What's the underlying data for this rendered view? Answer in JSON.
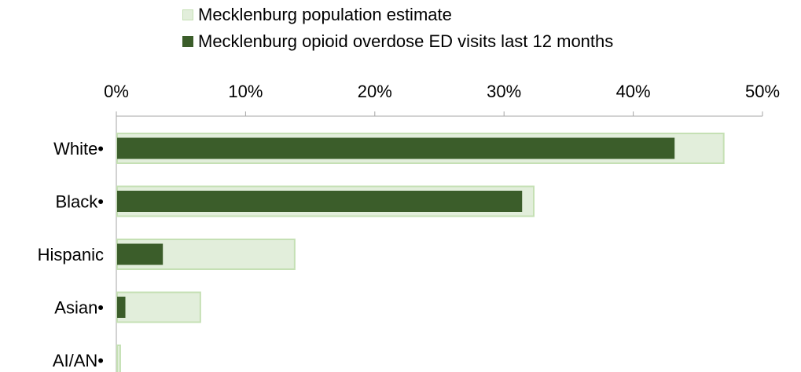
{
  "colors": {
    "population_fill": "#e2eedb",
    "population_stroke": "#c5e0b4",
    "ed_fill": "#3b5d2a",
    "axis": "#a6a6a6"
  },
  "legend": {
    "items": [
      {
        "label": "Mecklenburg population estimate",
        "color_key": "population"
      },
      {
        "label": "Mecklenburg opioid overdose ED visits last 12 months",
        "color_key": "ed"
      }
    ]
  },
  "chart_data": {
    "type": "bar",
    "orientation": "horizontal",
    "categories": [
      "White•",
      "Black•",
      "Hispanic",
      "Asian•",
      "AI/AN•"
    ],
    "series": [
      {
        "name": "Mecklenburg population estimate",
        "values": [
          47.0,
          32.3,
          13.8,
          6.5,
          0.3
        ]
      },
      {
        "name": "Mecklenburg opioid overdose ED visits last 12 months",
        "values": [
          43.2,
          31.4,
          3.6,
          0.7,
          0.0
        ]
      }
    ],
    "xlim": [
      0,
      50
    ],
    "x_ticks": [
      "0%",
      "10%",
      "20%",
      "30%",
      "40%",
      "50%"
    ],
    "x_tick_values": [
      0,
      10,
      20,
      30,
      40,
      50
    ],
    "axis_position": "top",
    "legend_position": "top",
    "grid": false
  }
}
